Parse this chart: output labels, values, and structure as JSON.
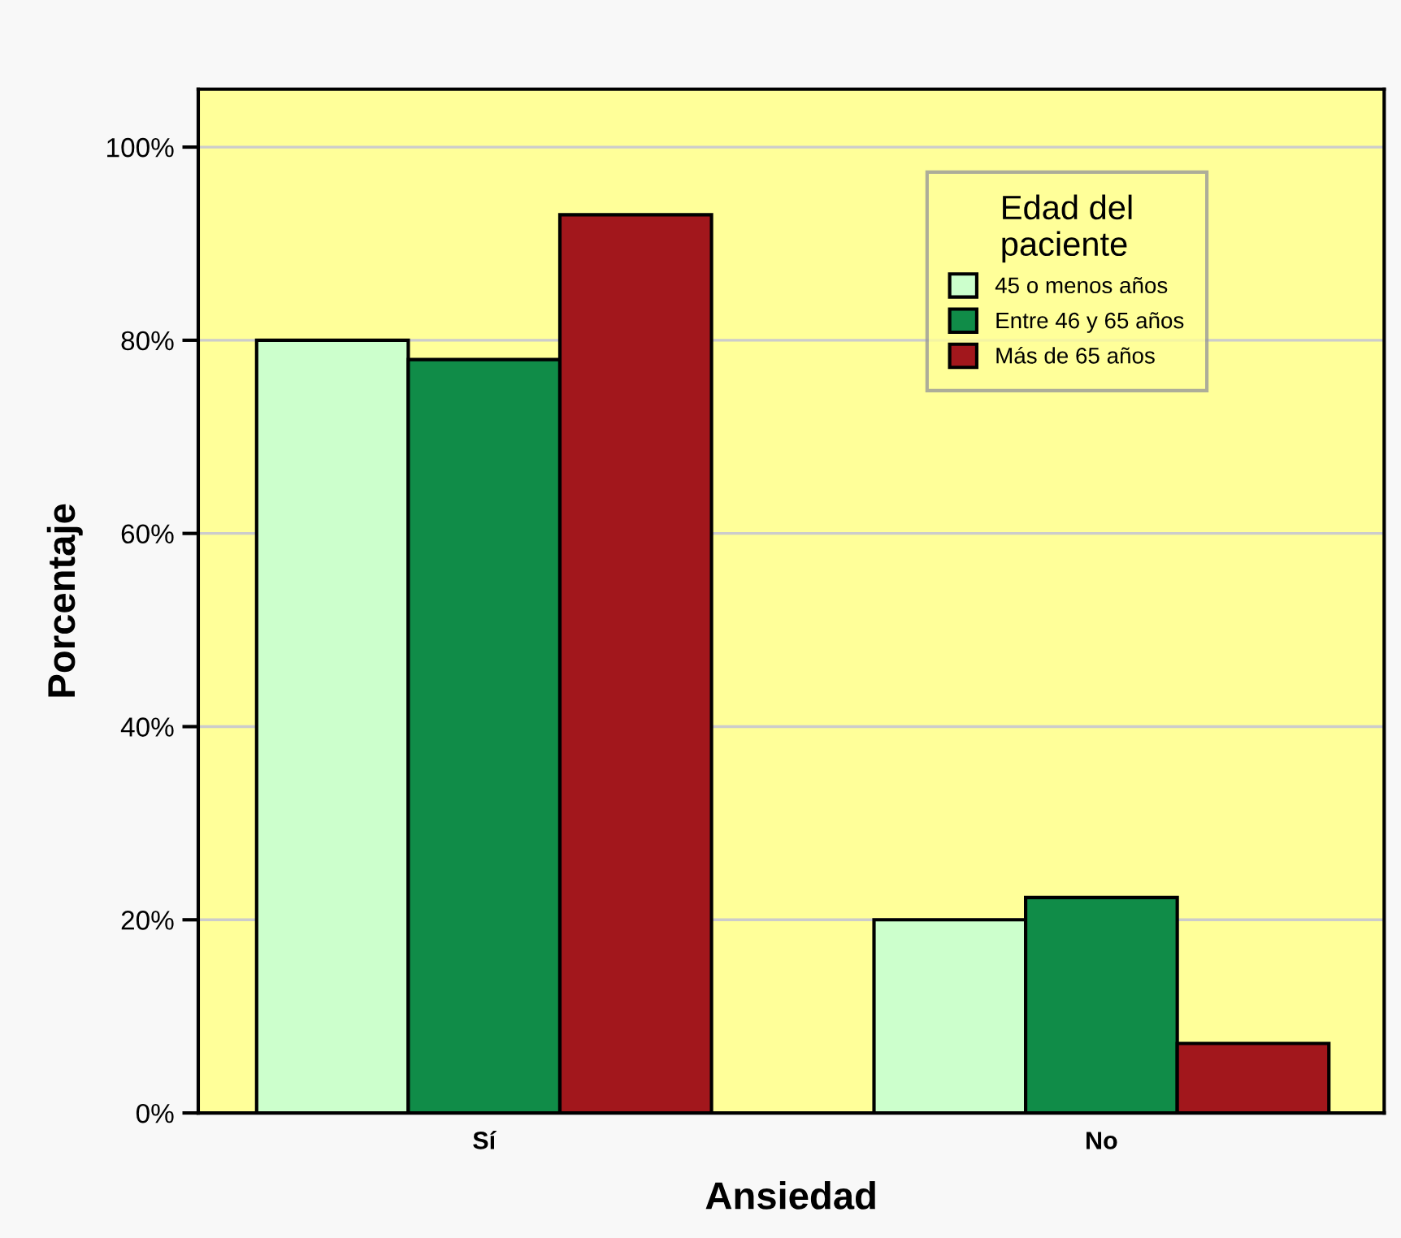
{
  "chart_data": {
    "type": "bar",
    "xlabel": "Ansiedad",
    "ylabel": "Porcentaje",
    "legend_title": "Edad del\npaciente",
    "categories": [
      "Sí",
      "No"
    ],
    "series": [
      {
        "name": "45 o menos años",
        "color": "#ccffcc",
        "values": [
          80,
          20
        ]
      },
      {
        "name": "Entre 46 y 65 años",
        "color": "#108c48",
        "values": [
          78,
          22.3
        ]
      },
      {
        "name": "Más de 65 años",
        "color": "#a2171c",
        "values": [
          93,
          7.2
        ]
      }
    ],
    "ylim": [
      0,
      106
    ],
    "yticks": [
      {
        "value": 0,
        "label": "0%"
      },
      {
        "value": 20,
        "label": "20%"
      },
      {
        "value": 40,
        "label": "40%"
      },
      {
        "value": 60,
        "label": "60%"
      },
      {
        "value": 80,
        "label": "80%"
      },
      {
        "value": 100,
        "label": "100%"
      }
    ],
    "grid": "y",
    "legend": "top right"
  }
}
